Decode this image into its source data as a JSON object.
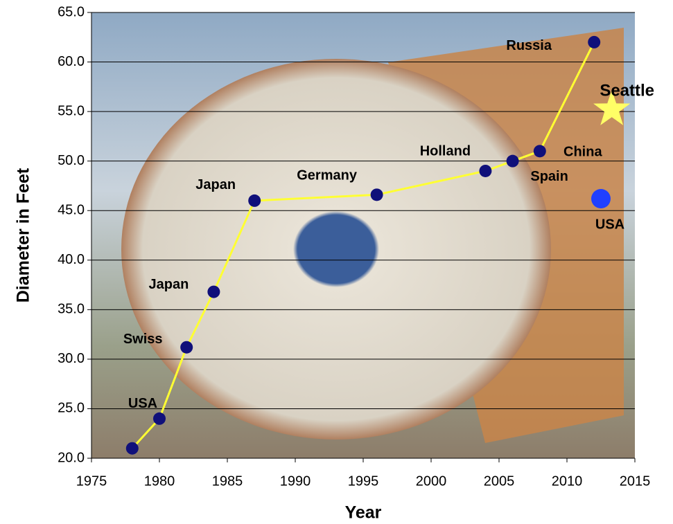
{
  "chart_data": {
    "type": "line",
    "x_label": "Year",
    "y_label": "Diameter in Feet",
    "x": [
      1978,
      1980,
      1982,
      1984,
      1987,
      1996,
      2004,
      2006,
      2008,
      2012
    ],
    "series": [
      {
        "color": "#ffff33",
        "marker_color": "#10107a",
        "values": [
          21,
          24,
          31.2,
          36.8,
          46,
          46.6,
          49,
          50,
          51,
          62
        ],
        "point_labels": [
          null,
          "USA",
          "Swiss",
          "Japan",
          "Japan",
          "Germany",
          "Holland",
          "Spain",
          "China",
          "Russia"
        ]
      }
    ],
    "annotations": [
      {
        "text": "Seattle",
        "x": 2013.3,
        "y": 55.2,
        "marker": "star",
        "color": "#ffff66"
      },
      {
        "text": "USA",
        "x": 2012.5,
        "y": 46.2,
        "marker": "circle",
        "color": "#2040ff"
      }
    ],
    "xlim": [
      1975,
      2015
    ],
    "xticks": [
      1975,
      1980,
      1985,
      1990,
      1995,
      2000,
      2005,
      2010,
      2015
    ],
    "ylim": [
      20,
      65
    ],
    "yticks": [
      {
        "value": 20,
        "label": "20.0"
      },
      {
        "value": 25,
        "label": "25.0"
      },
      {
        "value": 30,
        "label": "30.0"
      },
      {
        "value": 35,
        "label": "35.0"
      },
      {
        "value": 40,
        "label": "40.0"
      },
      {
        "value": 45,
        "label": "45.0"
      },
      {
        "value": 50,
        "label": "50.0"
      },
      {
        "value": 55,
        "label": "55.0"
      },
      {
        "value": 60,
        "label": "60.0"
      },
      {
        "value": 65,
        "label": "65.0"
      }
    ],
    "grid": true
  }
}
